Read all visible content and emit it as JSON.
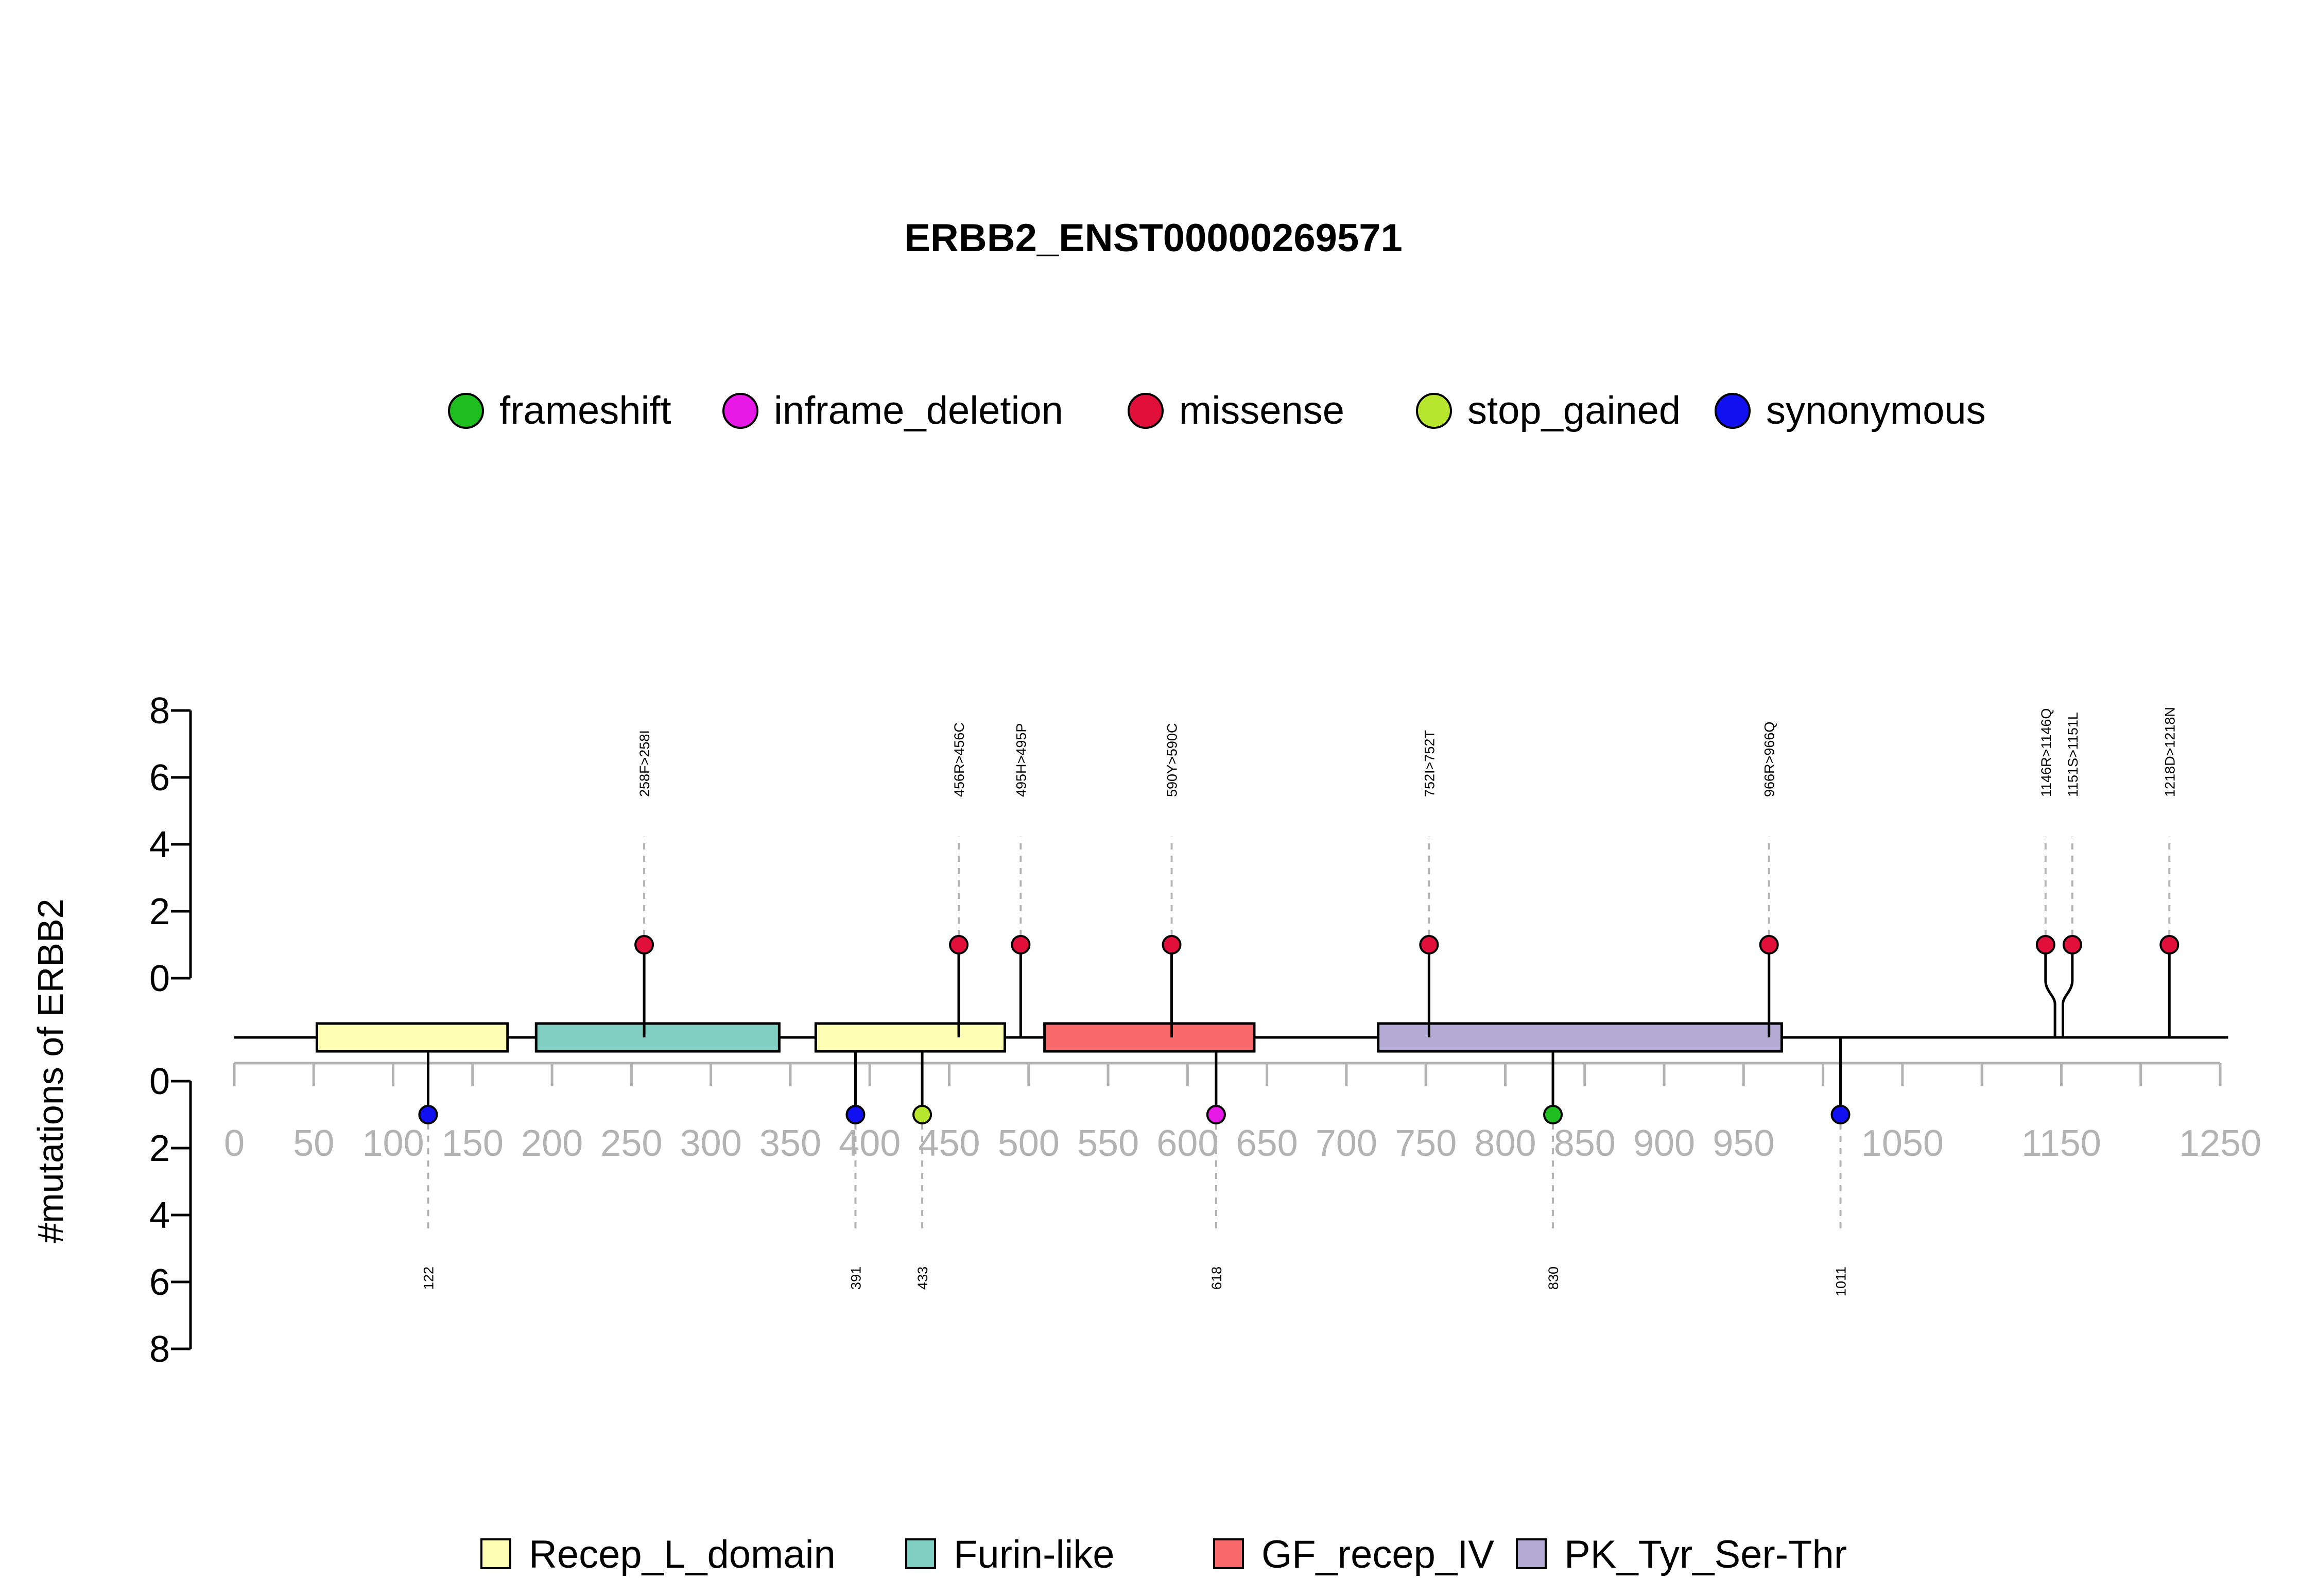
{
  "chart_data": {
    "type": "lollipop",
    "title": "ERBB2_ENST00000269571",
    "ylabel": "#mutations of ERBB2",
    "x_ticks": [
      0,
      50,
      100,
      150,
      200,
      250,
      300,
      350,
      400,
      450,
      500,
      550,
      600,
      650,
      700,
      750,
      800,
      850,
      900,
      950,
      1000,
      1050,
      1100,
      1150,
      1200,
      1250
    ],
    "x_tick_labels": [
      "0",
      "50",
      "100",
      "150",
      "200",
      "250",
      "300",
      "350",
      "400",
      "450",
      "500",
      "550",
      "600",
      "650",
      "700",
      "750",
      "800",
      "850",
      "900",
      "950",
      "",
      "1050",
      "",
      "1150",
      "",
      "1250"
    ],
    "xlim": [
      0,
      1250
    ],
    "y_ticks": [
      0,
      2,
      4,
      6,
      8
    ],
    "ylim": [
      0,
      8
    ],
    "mutation_types": [
      {
        "name": "frameshift",
        "color": "#1EBE1E"
      },
      {
        "name": "inframe_deletion",
        "color": "#E619E6"
      },
      {
        "name": "missense",
        "color": "#E0103A"
      },
      {
        "name": "stop_gained",
        "color": "#B8E62E"
      },
      {
        "name": "synonymous",
        "color": "#1010F0"
      }
    ],
    "domain_types": [
      {
        "name": "Recep_L_domain",
        "color": "#FFFFB3"
      },
      {
        "name": "Furin-like",
        "color": "#80CDC1"
      },
      {
        "name": "GF_recep_IV",
        "color": "#F8696B"
      },
      {
        "name": "PK_Tyr_Ser-Thr",
        "color": "#B3ABD3"
      }
    ],
    "domains": [
      {
        "name": "Recep_L_domain",
        "start": 52,
        "end": 172
      },
      {
        "name": "Furin-like",
        "start": 190,
        "end": 343
      },
      {
        "name": "Recep_L_domain",
        "start": 366,
        "end": 485
      },
      {
        "name": "GF_recep_IV",
        "start": 510,
        "end": 642
      },
      {
        "name": "PK_Tyr_Ser-Thr",
        "start": 720,
        "end": 974
      }
    ],
    "mutations_top": [
      {
        "pos": 258,
        "label": "258F>258I",
        "type": "missense",
        "count": 1
      },
      {
        "pos": 456,
        "label": "456R>456C",
        "type": "missense",
        "count": 1
      },
      {
        "pos": 495,
        "label": "495H>495P",
        "type": "missense",
        "count": 1
      },
      {
        "pos": 590,
        "label": "590Y>590C",
        "type": "missense",
        "count": 1
      },
      {
        "pos": 752,
        "label": "752I>752T",
        "type": "missense",
        "count": 1
      },
      {
        "pos": 966,
        "label": "966R>966Q",
        "type": "missense",
        "count": 1
      },
      {
        "pos": 1146,
        "label": "1146R>1146Q",
        "type": "missense",
        "count": 1
      },
      {
        "pos": 1151,
        "label": "1151S>1151L",
        "type": "missense",
        "count": 1
      },
      {
        "pos": 1218,
        "label": "1218D>1218N",
        "type": "missense",
        "count": 1
      }
    ],
    "mutations_bottom": [
      {
        "pos": 122,
        "label": "122",
        "type": "synonymous",
        "count": 1
      },
      {
        "pos": 391,
        "label": "391",
        "type": "synonymous",
        "count": 1
      },
      {
        "pos": 433,
        "label": "433",
        "type": "stop_gained",
        "count": 1
      },
      {
        "pos": 618,
        "label": "618",
        "type": "inframe_deletion",
        "count": 1
      },
      {
        "pos": 830,
        "label": "830",
        "type": "frameshift",
        "count": 1
      },
      {
        "pos": 1011,
        "label": "1011",
        "type": "synonymous",
        "count": 1
      }
    ]
  }
}
